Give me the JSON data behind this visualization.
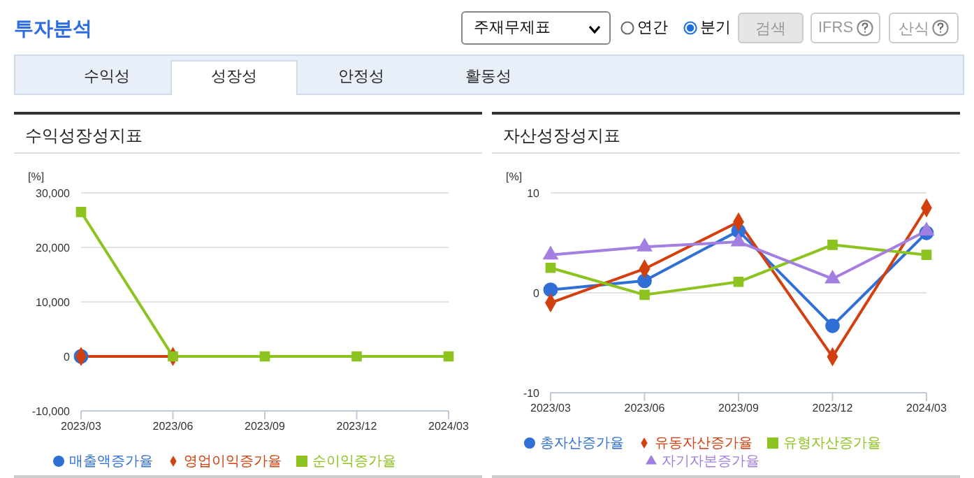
{
  "chart_data": [
    {
      "type": "line",
      "title": "수익성장성지표",
      "ylabel": "[%]",
      "annotations": [
        "투자분석",
        "주재무제표",
        "연간",
        "분기",
        "검색",
        "IFRS",
        "산식",
        "수익성",
        "성장성",
        "안정성",
        "활동성"
      ],
      "categories": [
        "2023/03",
        "2023/06",
        "2023/09",
        "2023/12",
        "2024/03"
      ],
      "series": [
        {
          "name": "매출액증가율",
          "color": "#2f6fd6",
          "marker": "circle",
          "values": [
            0,
            null,
            null,
            null,
            null
          ]
        },
        {
          "name": "영업이익증가율",
          "color": "#d2400f",
          "marker": "diamond",
          "values": [
            0,
            0,
            null,
            null,
            null
          ]
        },
        {
          "name": "순이익증가율",
          "color": "#8cc31f",
          "marker": "square",
          "values": [
            26500,
            0,
            0,
            0,
            0
          ]
        }
      ],
      "ylim": [
        -10000,
        30000
      ],
      "yticks": [
        {
          "value": -10000,
          "label": "-10,000"
        },
        0,
        {
          "value": 10000,
          "label": "10,000"
        },
        {
          "value": 20000,
          "label": "20,000"
        },
        {
          "value": 30000,
          "label": "30,000"
        }
      ],
      "grid": "y",
      "legend": "bottom"
    },
    {
      "type": "line",
      "title": "자산성장성지표",
      "ylabel": "[%]",
      "categories": [
        "2023/03",
        "2023/06",
        "2023/09",
        "2023/12",
        "2024/03"
      ],
      "series": [
        {
          "name": "총자산증가율",
          "color": "#2f6fd6",
          "marker": "circle",
          "values": [
            0.3,
            1.2,
            6.2,
            -3.3,
            6.0
          ]
        },
        {
          "name": "유동자산증가율",
          "color": "#d2400f",
          "marker": "diamond",
          "values": [
            -1.0,
            2.4,
            7.1,
            -6.4,
            8.5
          ]
        },
        {
          "name": "유형자산증가율",
          "color": "#8cc31f",
          "marker": "square",
          "values": [
            2.5,
            -0.2,
            1.1,
            4.8,
            3.8
          ]
        },
        {
          "name": "자기자본증가율",
          "color": "#a27fe0",
          "marker": "triangle",
          "values": [
            3.8,
            4.6,
            5.1,
            1.4,
            6.2
          ]
        }
      ],
      "ylim": [
        -10,
        10
      ],
      "yticks": [
        -10,
        0,
        10
      ],
      "grid": "y",
      "legend": "bottom"
    }
  ]
}
